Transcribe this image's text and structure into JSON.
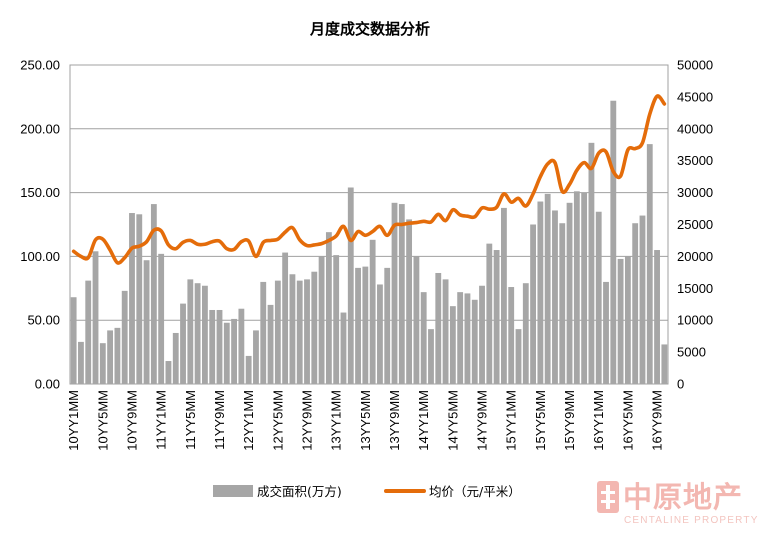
{
  "chart_data": {
    "type": "bar",
    "title": "月度成交数据分析",
    "x_tick_labels": [
      "10YY1MM",
      "10YY5MM",
      "10YY9MM",
      "11YY1MM",
      "11YY5MM",
      "11YY9MM",
      "12YY1MM",
      "12YY5MM",
      "12YY9MM",
      "13YY1MM",
      "13YY5MM",
      "13YY9MM",
      "14YY1MM",
      "14YY5MM",
      "14YY9MM",
      "15YY1MM",
      "15YY5MM",
      "15YY9MM",
      "16YY1MM",
      "16YY5MM",
      "16YY9MM"
    ],
    "series": [
      {
        "name": "成交面积(万方)",
        "type": "bar",
        "axis": "left",
        "color": "#a6a6a6",
        "values": [
          68,
          33,
          81,
          104,
          32,
          42,
          44,
          73,
          134,
          133,
          97,
          141,
          102,
          18,
          40,
          63,
          82,
          79,
          77,
          58,
          58,
          48,
          51,
          59,
          22,
          42,
          80,
          62,
          81,
          103,
          86,
          81,
          82,
          88,
          100,
          119,
          101,
          56,
          154,
          91,
          92,
          113,
          78,
          91,
          142,
          141,
          129,
          100,
          72,
          43,
          87,
          82,
          61,
          72,
          71,
          66,
          77,
          110,
          105,
          138,
          76,
          43,
          79,
          125,
          143,
          149,
          136,
          126,
          142,
          151,
          150,
          189,
          135,
          80,
          222,
          98,
          100,
          126,
          132,
          188,
          105,
          31
        ]
      },
      {
        "name": "均价（元/平米）",
        "type": "line",
        "axis": "right",
        "color": "#e46c0a",
        "values": [
          20800,
          20000,
          19800,
          22600,
          22700,
          21000,
          19000,
          19800,
          21300,
          21600,
          22300,
          24100,
          24000,
          21800,
          21200,
          22200,
          22500,
          21900,
          21900,
          22300,
          22400,
          21200,
          21100,
          22300,
          22400,
          20000,
          22200,
          22500,
          22700,
          23800,
          24500,
          22600,
          21700,
          21800,
          22000,
          22500,
          23200,
          24700,
          22500,
          23900,
          23300,
          23900,
          24700,
          23300,
          24900,
          25000,
          25200,
          25300,
          25500,
          25400,
          26600,
          25600,
          27300,
          26500,
          26300,
          26200,
          27600,
          27400,
          27700,
          29800,
          28500,
          29100,
          27900,
          29800,
          32500,
          34500,
          34700,
          30200,
          31300,
          33500,
          34700,
          33800,
          36200,
          36400,
          33300,
          32600,
          36700,
          36900,
          37800,
          42300,
          45100,
          43900
        ]
      }
    ],
    "y_left": {
      "lim": [
        0,
        250
      ],
      "ticks": [
        "0.00",
        "50.00",
        "100.00",
        "150.00",
        "200.00",
        "250.00"
      ]
    },
    "y_right": {
      "lim": [
        0,
        50000
      ],
      "ticks": [
        "0",
        "5000",
        "10000",
        "15000",
        "20000",
        "25000",
        "30000",
        "35000",
        "40000",
        "45000",
        "50000"
      ]
    },
    "grid": true,
    "legend": "bottom"
  },
  "watermark": {
    "brand_cn": "中原地产",
    "brand_en": "CENTALINE PROPERTY"
  }
}
